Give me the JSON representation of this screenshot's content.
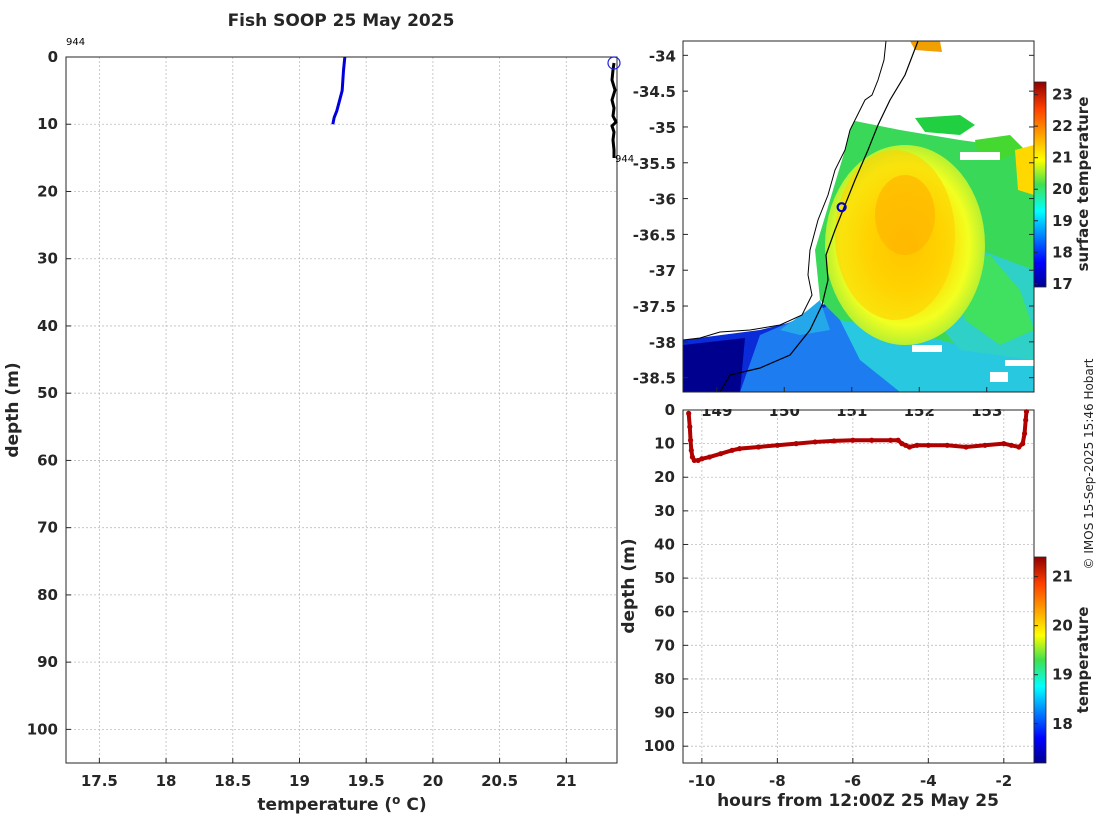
{
  "title": "Fish SOOP 25 May 2025",
  "credit": "© IMOS 15-Sep-2025 15:46 Hobart",
  "colors": {
    "profile": "#0000dd",
    "track": "#000000",
    "bottom_series": "#b00000",
    "marker": "#0000cc"
  },
  "chart_data": [
    {
      "id": "profile",
      "type": "line",
      "xlabel": "temperature (o C)",
      "xlabel_main": "temperature (",
      "xlabel_sup": "o",
      "xlabel_end": " C)",
      "ylabel": "depth (m)",
      "xlim": [
        17.25,
        21.38
      ],
      "ylim": [
        105,
        0
      ],
      "xticks": [
        17.5,
        18,
        18.5,
        19,
        19.5,
        20,
        20.5,
        21
      ],
      "yticks": [
        0,
        10,
        20,
        30,
        40,
        50,
        60,
        70,
        80,
        90,
        100
      ],
      "annotation_top": "944",
      "annotation_right": "944",
      "series": [
        {
          "name": "profile",
          "x": [
            19.34,
            19.33,
            19.32,
            19.3,
            19.28,
            19.26,
            19.25
          ],
          "y": [
            0,
            2,
            5,
            6.5,
            8,
            9,
            10
          ]
        }
      ]
    },
    {
      "id": "map",
      "type": "heatmap",
      "colorbar_label": "surface temperature",
      "colorbar_ticks": [
        17,
        18,
        19,
        20,
        21,
        22,
        23
      ],
      "colorbar_range": [
        16.9,
        23.4
      ],
      "xticks": [
        149,
        150,
        151,
        152,
        153
      ],
      "yticks": [
        -34,
        -34.5,
        -35,
        -35.5,
        -36,
        -36.5,
        -37,
        -37.5,
        -38,
        -38.5
      ],
      "xlim": [
        148.5,
        153.7
      ],
      "ylim": [
        -38.7,
        -33.8
      ],
      "marker": {
        "lon": 150.85,
        "lat": -36.12
      }
    },
    {
      "id": "depth_time",
      "type": "scatter",
      "xlabel": "hours from 12:00Z 25 May 25",
      "ylabel": "depth (m)",
      "colorbar_label": "temperature",
      "colorbar_ticks": [
        18,
        19,
        20,
        21
      ],
      "colorbar_range": [
        17.2,
        21.4
      ],
      "xlim": [
        -10.5,
        -1.2
      ],
      "ylim": [
        105,
        0
      ],
      "xticks": [
        -10,
        -8,
        -6,
        -4,
        -2
      ],
      "yticks": [
        0,
        10,
        20,
        30,
        40,
        50,
        60,
        70,
        80,
        90,
        100
      ],
      "series": [
        {
          "name": "depth",
          "x": [
            -10.35,
            -10.32,
            -10.3,
            -10.28,
            -10.25,
            -10.2,
            -10.1,
            -10,
            -9.8,
            -9.5,
            -9.2,
            -9,
            -8.5,
            -8,
            -7.5,
            -7,
            -6.5,
            -6,
            -5.5,
            -5,
            -4.8,
            -4.7,
            -4.6,
            -4.5,
            -4.3,
            -4,
            -3.5,
            -3,
            -2.5,
            -2,
            -1.8,
            -1.6,
            -1.5,
            -1.45,
            -1.42,
            -1.4
          ],
          "y": [
            1,
            5,
            9,
            12,
            14,
            15,
            15,
            14.5,
            14,
            13,
            12,
            11.5,
            11,
            10.5,
            10,
            9.5,
            9.2,
            9,
            9,
            9,
            9,
            10,
            10.5,
            11,
            10.5,
            10.5,
            10.5,
            11,
            10.5,
            10,
            10.5,
            11,
            10,
            7,
            3,
            0.5
          ]
        }
      ]
    }
  ]
}
